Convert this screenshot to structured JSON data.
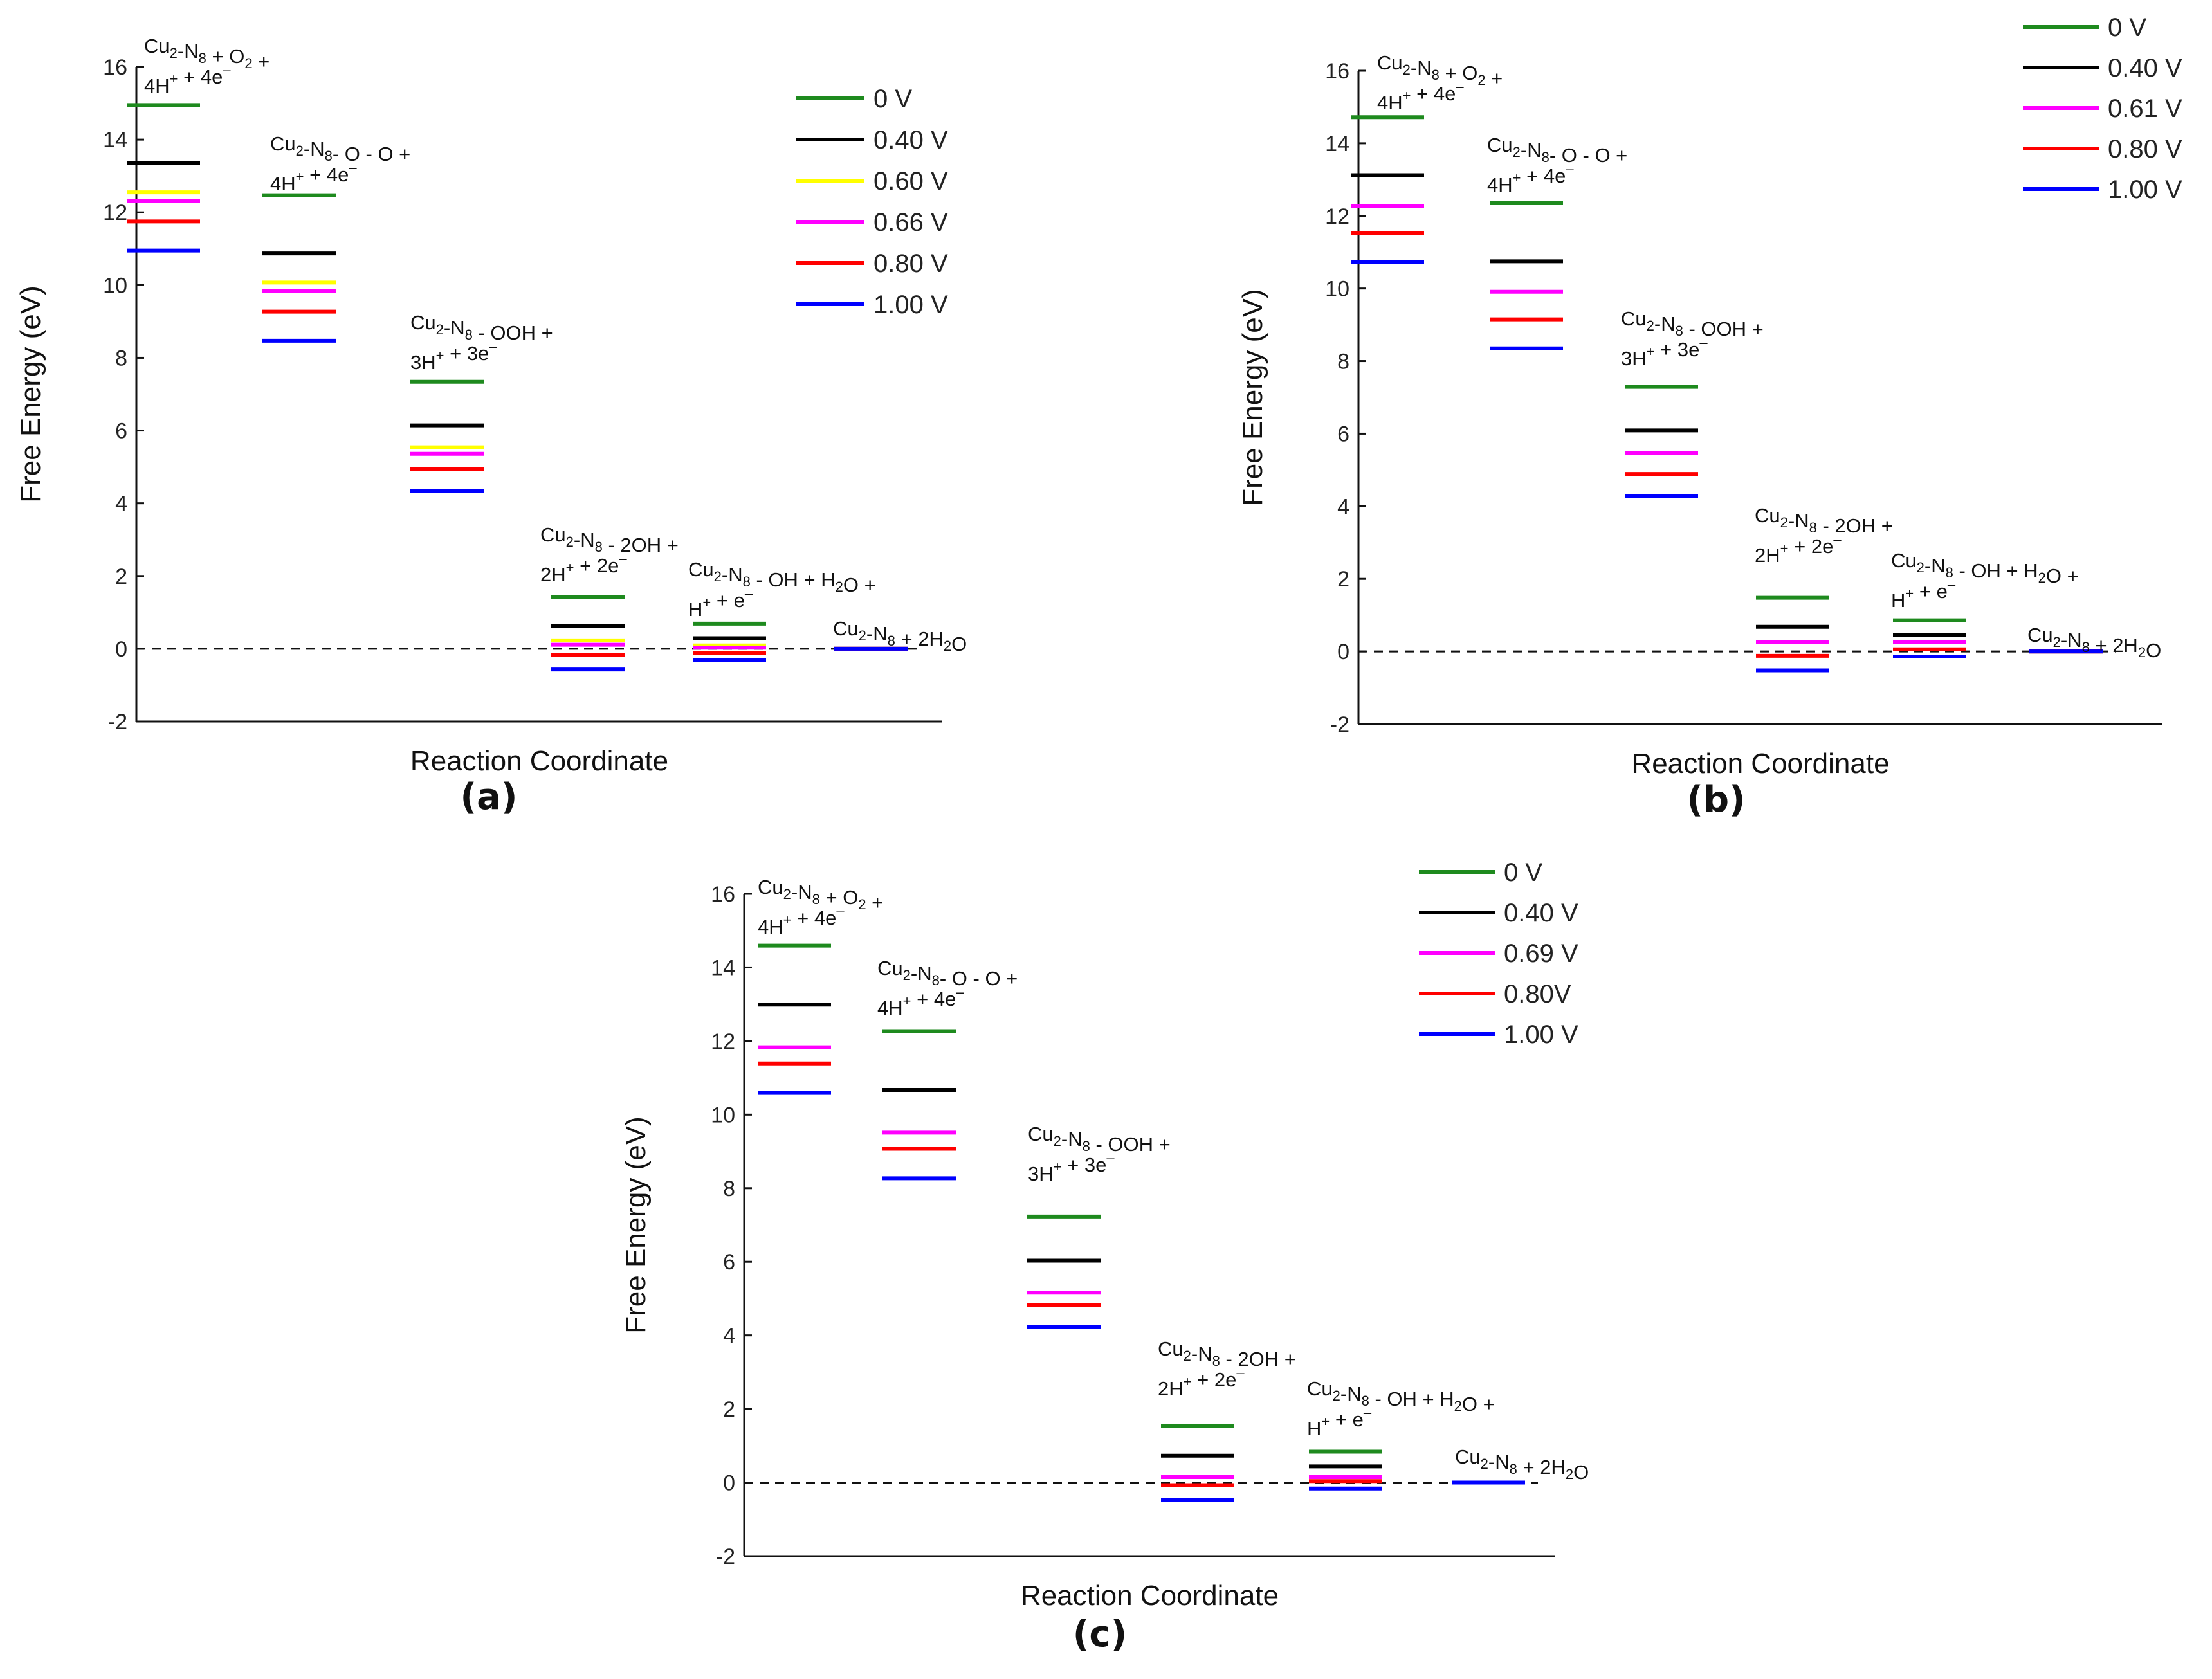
{
  "figure": {
    "colors": {
      "0 V": "#1e8a1e",
      "0.40 V": "#000000",
      "0.60 V": "#ffff00",
      "0.61 V": "#ff00ff",
      "0.66 V": "#ff00ff",
      "0.69 V": "#ff00ff",
      "0.80 V": "#ff0000",
      "0.80V": "#ff0000",
      "1.00 V": "#0000ff"
    }
  },
  "chart_data": [
    {
      "type": "energy-level-diagram",
      "panel": "(a)",
      "xlabel": "Reaction Coordinate",
      "ylabel": "Free Energy (eV)",
      "ylim": [
        -2,
        16
      ],
      "yticks": [
        "-2",
        "0",
        "2",
        "4",
        "6",
        "8",
        "10",
        "12",
        "14",
        "16"
      ],
      "reference_line": 0,
      "steps": [
        {
          "line1": [
            [
              "Cu",
              "2",
              "sub"
            ],
            [
              "-N",
              "8",
              "sub"
            ],
            [
              " + O",
              "2",
              "sub"
            ],
            [
              " +",
              "",
              ""
            ]
          ],
          "line2": [
            [
              "4H",
              "+",
              "sup"
            ],
            [
              " + 4e",
              "–",
              "sup"
            ]
          ]
        },
        {
          "line1": [
            [
              "Cu",
              "2",
              "sub"
            ],
            [
              "-N",
              "8",
              "sub"
            ],
            [
              "- O - O +",
              "",
              ""
            ]
          ],
          "line2": [
            [
              "4H",
              "+",
              "sup"
            ],
            [
              " + 4e",
              "–",
              "sup"
            ]
          ]
        },
        {
          "line1": [
            [
              "Cu",
              "2",
              "sub"
            ],
            [
              "-N",
              "8",
              "sub"
            ],
            [
              " - OOH +",
              "",
              ""
            ]
          ],
          "line2": [
            [
              "3H",
              "+",
              "sup"
            ],
            [
              " + 3e",
              "–",
              "sup"
            ]
          ]
        },
        {
          "line1": [
            [
              "Cu",
              "2",
              "sub"
            ],
            [
              "-N",
              "8",
              "sub"
            ],
            [
              " - 2OH +",
              "",
              ""
            ]
          ],
          "line2": [
            [
              "2H",
              "+",
              "sup"
            ],
            [
              " + 2e",
              "–",
              "sup"
            ]
          ]
        },
        {
          "line1": [
            [
              "Cu",
              "2",
              "sub"
            ],
            [
              "-N",
              "8",
              "sub"
            ],
            [
              " - OH + H",
              "2",
              "sub"
            ],
            [
              "O +",
              "",
              ""
            ]
          ],
          "line2": [
            [
              "H",
              "+",
              "sup"
            ],
            [
              " + e",
              "–",
              "sup"
            ]
          ]
        },
        {
          "line1": [
            [
              "Cu",
              "2",
              "sub"
            ],
            [
              "-N",
              "8",
              "sub"
            ],
            [
              " + 2H",
              "2",
              "sub"
            ],
            [
              "O",
              "",
              ""
            ]
          ],
          "line2": []
        }
      ],
      "series": [
        {
          "name": "0 V",
          "values": [
            14.95,
            12.47,
            7.34,
            1.43,
            0.69,
            0.0
          ]
        },
        {
          "name": "0.40 V",
          "values": [
            13.35,
            10.87,
            6.14,
            0.63,
            0.29,
            0.0
          ]
        },
        {
          "name": "0.60 V",
          "values": [
            12.55,
            10.07,
            5.54,
            0.23,
            0.09,
            0.0
          ]
        },
        {
          "name": "0.66 V",
          "values": [
            12.31,
            9.83,
            5.36,
            0.11,
            0.03,
            0.0
          ]
        },
        {
          "name": "0.80 V",
          "values": [
            11.75,
            9.27,
            4.94,
            -0.17,
            -0.11,
            0.0
          ]
        },
        {
          "name": "1.00 V",
          "values": [
            10.95,
            8.47,
            4.34,
            -0.57,
            -0.31,
            0.0
          ]
        }
      ],
      "legend": [
        "0 V",
        "0.40 V",
        "0.60 V",
        "0.66 V",
        "0.80 V",
        "1.00 V"
      ]
    },
    {
      "type": "energy-level-diagram",
      "panel": "(b)",
      "xlabel": "Reaction Coordinate",
      "ylabel": "Free Energy (eV)",
      "ylim": [
        -2,
        16
      ],
      "yticks": [
        "-2",
        "0",
        "2",
        "4",
        "6",
        "8",
        "10",
        "12",
        "14",
        "16"
      ],
      "reference_line": 0,
      "steps": [
        {
          "line1": [
            [
              "Cu",
              "2",
              "sub"
            ],
            [
              "-N",
              "8",
              "sub"
            ],
            [
              " + O",
              "2",
              "sub"
            ],
            [
              " +",
              "",
              ""
            ]
          ],
          "line2": [
            [
              "4H",
              "+",
              "sup"
            ],
            [
              " + 4e",
              "–",
              "sup"
            ]
          ]
        },
        {
          "line1": [
            [
              "Cu",
              "2",
              "sub"
            ],
            [
              "-N",
              "8",
              "sub"
            ],
            [
              "- O - O +",
              "",
              ""
            ]
          ],
          "line2": [
            [
              "4H",
              "+",
              "sup"
            ],
            [
              " + 4e",
              "–",
              "sup"
            ]
          ]
        },
        {
          "line1": [
            [
              "Cu",
              "2",
              "sub"
            ],
            [
              "-N",
              "8",
              "sub"
            ],
            [
              " - OOH +",
              "",
              ""
            ]
          ],
          "line2": [
            [
              "3H",
              "+",
              "sup"
            ],
            [
              " + 3e",
              "–",
              "sup"
            ]
          ]
        },
        {
          "line1": [
            [
              "Cu",
              "2",
              "sub"
            ],
            [
              "-N",
              "8",
              "sub"
            ],
            [
              " - 2OH +",
              "",
              ""
            ]
          ],
          "line2": [
            [
              "2H",
              "+",
              "sup"
            ],
            [
              " + 2e",
              "–",
              "sup"
            ]
          ]
        },
        {
          "line1": [
            [
              "Cu",
              "2",
              "sub"
            ],
            [
              "-N",
              "8",
              "sub"
            ],
            [
              " - OH + H",
              "2",
              "sub"
            ],
            [
              "O +",
              "",
              ""
            ]
          ],
          "line2": [
            [
              "H",
              "+",
              "sup"
            ],
            [
              " + e",
              "–",
              "sup"
            ]
          ]
        },
        {
          "line1": [
            [
              "Cu",
              "2",
              "sub"
            ],
            [
              "-N",
              "8",
              "sub"
            ],
            [
              " + 2H",
              "2",
              "sub"
            ],
            [
              "O",
              "",
              ""
            ]
          ],
          "line2": []
        }
      ],
      "series": [
        {
          "name": "0 V",
          "values": [
            14.72,
            12.35,
            7.29,
            1.48,
            0.86,
            0.0
          ]
        },
        {
          "name": "0.40 V",
          "values": [
            13.12,
            10.75,
            6.09,
            0.68,
            0.46,
            0.0
          ]
        },
        {
          "name": "0.61 V",
          "values": [
            12.28,
            9.91,
            5.46,
            0.26,
            0.25,
            0.0
          ]
        },
        {
          "name": "0.80 V",
          "values": [
            11.52,
            9.15,
            4.89,
            -0.12,
            0.06,
            0.0
          ]
        },
        {
          "name": "1.00 V",
          "values": [
            10.72,
            8.35,
            4.29,
            -0.52,
            -0.14,
            0.0
          ]
        }
      ],
      "legend": [
        "0 V",
        "0.40 V",
        "0.61 V",
        "0.80 V",
        "1.00 V"
      ]
    },
    {
      "type": "energy-level-diagram",
      "panel": "(c)",
      "xlabel": "Reaction Coordinate",
      "ylabel": "Free Energy (eV)",
      "ylim": [
        -2,
        16
      ],
      "yticks": [
        "-2",
        "0",
        "2",
        "4",
        "6",
        "8",
        "10",
        "12",
        "14",
        "16"
      ],
      "reference_line": 0,
      "steps": [
        {
          "line1": [
            [
              "Cu",
              "2",
              "sub"
            ],
            [
              "-N",
              "8",
              "sub"
            ],
            [
              " + O",
              "2",
              "sub"
            ],
            [
              " +",
              "",
              ""
            ]
          ],
          "line2": [
            [
              "4H",
              "+",
              "sup"
            ],
            [
              " + 4e",
              "–",
              "sup"
            ]
          ]
        },
        {
          "line1": [
            [
              "Cu",
              "2",
              "sub"
            ],
            [
              "-N",
              "8",
              "sub"
            ],
            [
              "- O - O +",
              "",
              ""
            ]
          ],
          "line2": [
            [
              "4H",
              "+",
              "sup"
            ],
            [
              " + 4e",
              "–",
              "sup"
            ]
          ]
        },
        {
          "line1": [
            [
              "Cu",
              "2",
              "sub"
            ],
            [
              "-N",
              "8",
              "sub"
            ],
            [
              " - OOH +",
              "",
              ""
            ]
          ],
          "line2": [
            [
              "3H",
              "+",
              "sup"
            ],
            [
              " + 3e",
              "–",
              "sup"
            ]
          ]
        },
        {
          "line1": [
            [
              "Cu",
              "2",
              "sub"
            ],
            [
              "-N",
              "8",
              "sub"
            ],
            [
              " - 2OH +",
              "",
              ""
            ]
          ],
          "line2": [
            [
              "2H",
              "+",
              "sup"
            ],
            [
              " + 2e",
              "–",
              "sup"
            ]
          ]
        },
        {
          "line1": [
            [
              "Cu",
              "2",
              "sub"
            ],
            [
              "-N",
              "8",
              "sub"
            ],
            [
              " - OH + H",
              "2",
              "sub"
            ],
            [
              "O +",
              "",
              ""
            ]
          ],
          "line2": [
            [
              "H",
              "+",
              "sup"
            ],
            [
              " + e",
              "–",
              "sup"
            ]
          ]
        },
        {
          "line1": [
            [
              "Cu",
              "2",
              "sub"
            ],
            [
              "-N",
              "8",
              "sub"
            ],
            [
              " + 2H",
              "2",
              "sub"
            ],
            [
              "O",
              "",
              ""
            ]
          ],
          "line2": []
        }
      ],
      "series": [
        {
          "name": "0 V",
          "values": [
            14.59,
            12.27,
            7.23,
            1.53,
            0.84,
            0.0
          ]
        },
        {
          "name": "0.40 V",
          "values": [
            12.99,
            10.67,
            6.03,
            0.73,
            0.44,
            0.0
          ]
        },
        {
          "name": "0.69 V",
          "values": [
            11.83,
            9.51,
            5.16,
            0.15,
            0.15,
            0.0
          ]
        },
        {
          "name": "0.80V",
          "values": [
            11.39,
            9.07,
            4.83,
            -0.07,
            0.04,
            0.0
          ]
        },
        {
          "name": "1.00 V",
          "values": [
            10.59,
            8.27,
            4.23,
            -0.47,
            -0.16,
            0.0
          ]
        }
      ],
      "legend": [
        "0 V",
        "0.40 V",
        "0.69 V",
        "0.80V",
        "1.00 V"
      ]
    }
  ]
}
